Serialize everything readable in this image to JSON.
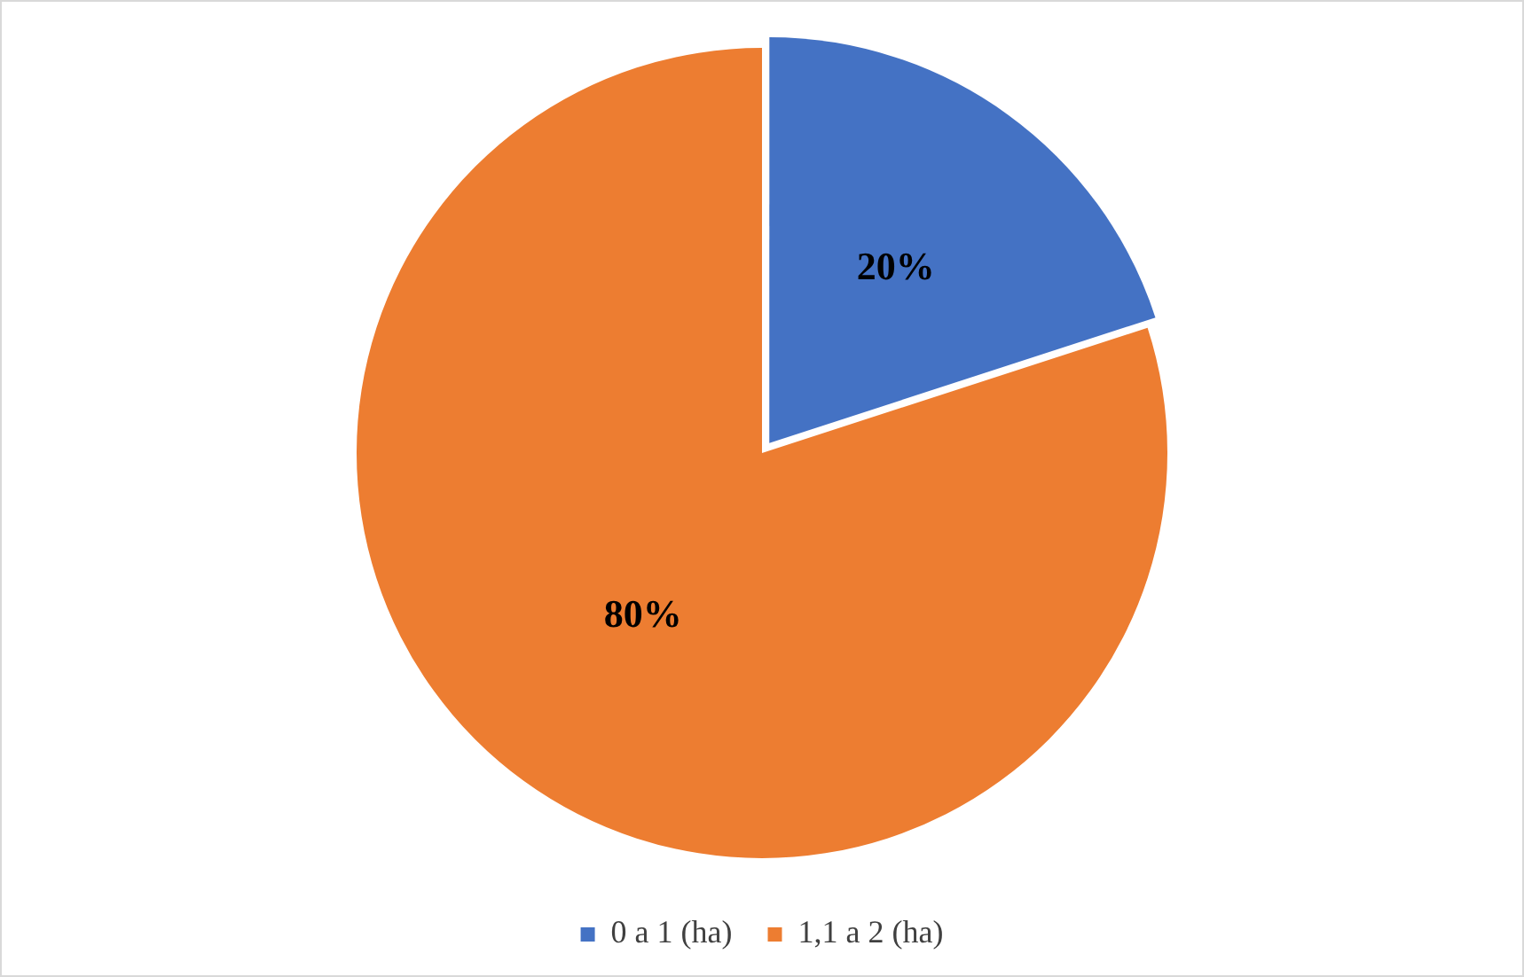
{
  "chart_data": {
    "type": "pie",
    "categories": [
      "0 a 1 (ha)",
      "1,1 a 2 (ha)"
    ],
    "values": [
      20,
      80
    ],
    "colors": [
      "#4472c4",
      "#ed7d31"
    ],
    "value_labels": [
      "20%",
      "80%"
    ],
    "legend": "bottom"
  }
}
